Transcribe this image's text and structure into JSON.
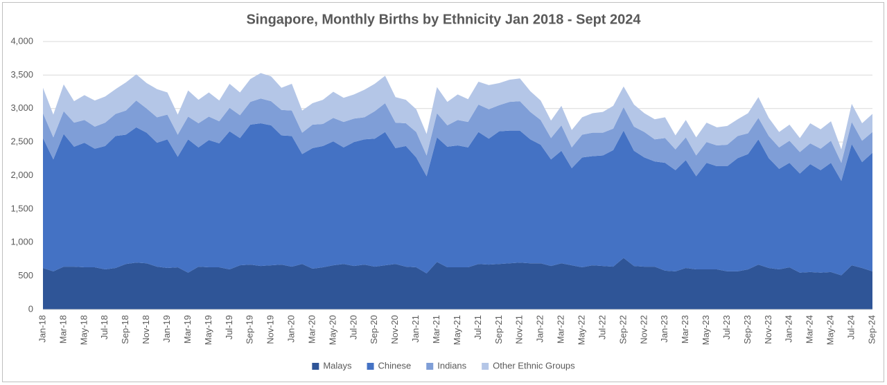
{
  "chart_data": {
    "type": "stacked-area",
    "title": "Singapore, Monthly Births by Ethnicity Jan 2018 - Sept 2024",
    "categories": [
      "Jan-18",
      null,
      "Mar-18",
      null,
      "May-18",
      null,
      "Jul-18",
      null,
      "Sep-18",
      null,
      "Nov-18",
      null,
      "Jan-19",
      null,
      "Mar-19",
      null,
      "May-19",
      null,
      "Jul-19",
      null,
      "Sep-19",
      null,
      "Nov-19",
      null,
      "Jan-20",
      null,
      "Mar-20",
      null,
      "May-20",
      null,
      "Jul-20",
      null,
      "Sep-20",
      null,
      "Nov-20",
      null,
      "Jan-21",
      null,
      "Mar-21",
      null,
      "May-21",
      null,
      "Jul-21",
      null,
      "Sep-21",
      null,
      "Nov-21",
      null,
      "Jan-22",
      null,
      "Mar-22",
      null,
      "May-22",
      null,
      "Jul-22",
      null,
      "Sep-22",
      null,
      "Nov-22",
      null,
      "Jan-23",
      null,
      "Mar-23",
      null,
      "May-23",
      null,
      "Jul-23",
      null,
      "Sep-23",
      null,
      "Nov-23",
      null,
      "Jan-24",
      null,
      "Mar-24",
      null,
      "May-24",
      null,
      "Jul-24",
      null,
      "Sep-24"
    ],
    "series": [
      {
        "name": "Malays",
        "color": "#2f5597",
        "values": [
          620,
          570,
          640,
          640,
          630,
          630,
          600,
          620,
          680,
          700,
          690,
          640,
          620,
          630,
          550,
          640,
          630,
          630,
          600,
          660,
          670,
          650,
          660,
          670,
          640,
          680,
          610,
          630,
          660,
          680,
          650,
          670,
          640,
          660,
          680,
          640,
          630,
          540,
          710,
          630,
          630,
          630,
          680,
          670,
          680,
          690,
          700,
          690,
          690,
          650,
          690,
          660,
          630,
          660,
          650,
          640,
          770,
          650,
          640,
          640,
          580,
          570,
          620,
          600,
          600,
          600,
          570,
          570,
          600,
          670,
          620,
          600,
          630,
          550,
          560,
          550,
          560,
          510,
          660,
          620,
          570
        ]
      },
      {
        "name": "Chinese",
        "color": "#4472c4",
        "values": [
          1940,
          1670,
          1980,
          1790,
          1860,
          1770,
          1840,
          1970,
          1930,
          2020,
          1950,
          1850,
          1920,
          1650,
          1990,
          1780,
          1900,
          1850,
          2060,
          1900,
          2090,
          2130,
          2090,
          1930,
          1950,
          1640,
          1800,
          1810,
          1850,
          1740,
          1850,
          1870,
          1910,
          1990,
          1730,
          1800,
          1640,
          1450,
          1860,
          1800,
          1820,
          1790,
          1970,
          1880,
          1980,
          1980,
          1970,
          1850,
          1770,
          1590,
          1680,
          1450,
          1640,
          1630,
          1650,
          1740,
          1900,
          1720,
          1630,
          1570,
          1610,
          1510,
          1610,
          1390,
          1590,
          1540,
          1570,
          1690,
          1720,
          1870,
          1640,
          1500,
          1560,
          1480,
          1610,
          1530,
          1630,
          1410,
          1810,
          1580,
          1770
        ]
      },
      {
        "name": "Indians",
        "color": "#7f9ed7",
        "values": [
          370,
          330,
          340,
          360,
          340,
          330,
          350,
          330,
          360,
          400,
          360,
          380,
          370,
          330,
          340,
          360,
          350,
          330,
          350,
          340,
          340,
          370,
          360,
          380,
          380,
          320,
          350,
          330,
          350,
          380,
          350,
          330,
          410,
          430,
          380,
          340,
          380,
          310,
          360,
          320,
          380,
          380,
          410,
          440,
          390,
          430,
          440,
          410,
          370,
          320,
          380,
          310,
          340,
          350,
          340,
          320,
          350,
          360,
          380,
          330,
          370,
          310,
          340,
          310,
          310,
          310,
          320,
          330,
          310,
          320,
          330,
          320,
          330,
          320,
          310,
          320,
          330,
          270,
          330,
          320,
          310
        ]
      },
      {
        "name": "Other Ethnic Groups",
        "color": "#b4c6e7",
        "values": [
          380,
          340,
          400,
          320,
          370,
          390,
          390,
          370,
          420,
          390,
          380,
          420,
          330,
          300,
          390,
          350,
          360,
          310,
          360,
          340,
          340,
          380,
          370,
          330,
          400,
          330,
          320,
          360,
          390,
          360,
          360,
          410,
          410,
          410,
          380,
          350,
          340,
          320,
          390,
          350,
          380,
          340,
          340,
          360,
          330,
          330,
          340,
          310,
          290,
          260,
          290,
          260,
          260,
          290,
          310,
          340,
          310,
          330,
          280,
          300,
          310,
          210,
          260,
          270,
          290,
          270,
          280,
          250,
          300,
          310,
          270,
          230,
          240,
          210,
          300,
          290,
          290,
          200,
          270,
          260,
          270
        ]
      }
    ],
    "ylim": [
      0,
      4000
    ],
    "yticks": [
      0,
      500,
      {
        "value": 1000,
        "label": "1,000"
      },
      {
        "value": 1500,
        "label": "1,500"
      },
      {
        "value": 2000,
        "label": "2,000"
      },
      {
        "value": 2500,
        "label": "2,500"
      },
      {
        "value": 3000,
        "label": "3,000"
      },
      {
        "value": 3500,
        "label": "3,500"
      },
      {
        "value": 4000,
        "label": "4,000"
      }
    ],
    "grid": true,
    "legend": "bottom"
  }
}
